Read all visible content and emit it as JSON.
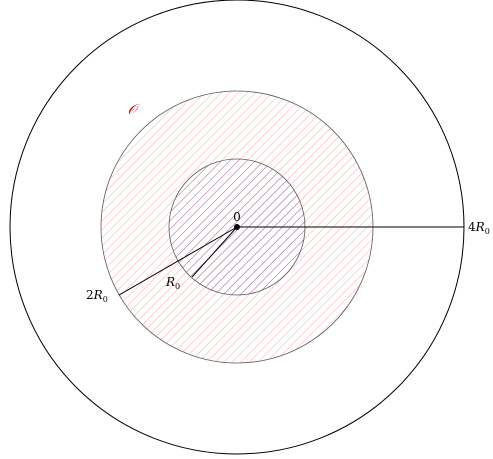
{
  "diagram": {
    "region_label": "𝒪",
    "center_label": "0",
    "radius_inner_label": {
      "coef": "",
      "sym": "R",
      "sub": "0"
    },
    "radius_middle_label": {
      "coef": "2",
      "sym": "R",
      "sub": "0"
    },
    "radius_outer_label": {
      "coef": "4",
      "sym": "R",
      "sub": "0"
    }
  },
  "colors": {
    "stroke": "#000000",
    "outer_circle": "#000000",
    "annulus_circle": "#5a5a5a",
    "annulus_hatch": "#ff8080",
    "inner_circle": "#5a5a5a",
    "inner_hatch": "#6a5a9a",
    "region_label": "#e00000"
  }
}
